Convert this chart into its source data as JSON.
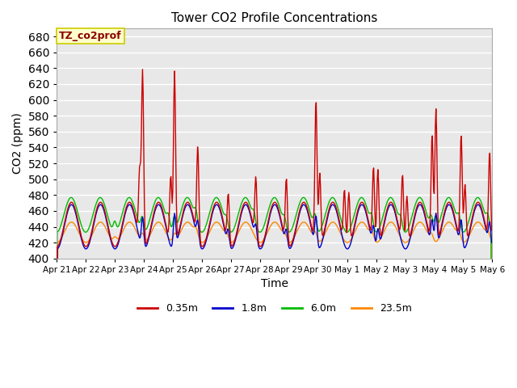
{
  "title": "Tower CO2 Profile Concentrations",
  "xlabel": "Time",
  "ylabel": "CO2 (ppm)",
  "ylim": [
    400,
    690
  ],
  "yticks": [
    400,
    420,
    440,
    460,
    480,
    500,
    520,
    540,
    560,
    580,
    600,
    620,
    640,
    660,
    680
  ],
  "annotation_text": "TZ_co2prof",
  "annotation_color": "#8B0000",
  "annotation_bg": "#FFFFCC",
  "annotation_border": "#CCCC00",
  "series": {
    "0.35m": {
      "color": "#CC0000",
      "linewidth": 1.0
    },
    "1.8m": {
      "color": "#0000CC",
      "linewidth": 1.0
    },
    "6.0m": {
      "color": "#00BB00",
      "linewidth": 1.0
    },
    "23.5m": {
      "color": "#FF8800",
      "linewidth": 1.0
    }
  },
  "x_tick_labels": [
    "Apr 21",
    "Apr 22",
    "Apr 23",
    "Apr 24",
    "Apr 25",
    "Apr 26",
    "Apr 27",
    "Apr 28",
    "Apr 29",
    "Apr 30",
    "May 1",
    "May 2",
    "May 3",
    "May 4",
    "May 5",
    "May 6"
  ],
  "background_color": "#E8E8E8",
  "grid_color": "#FFFFFF",
  "grid_linewidth": 1.0
}
